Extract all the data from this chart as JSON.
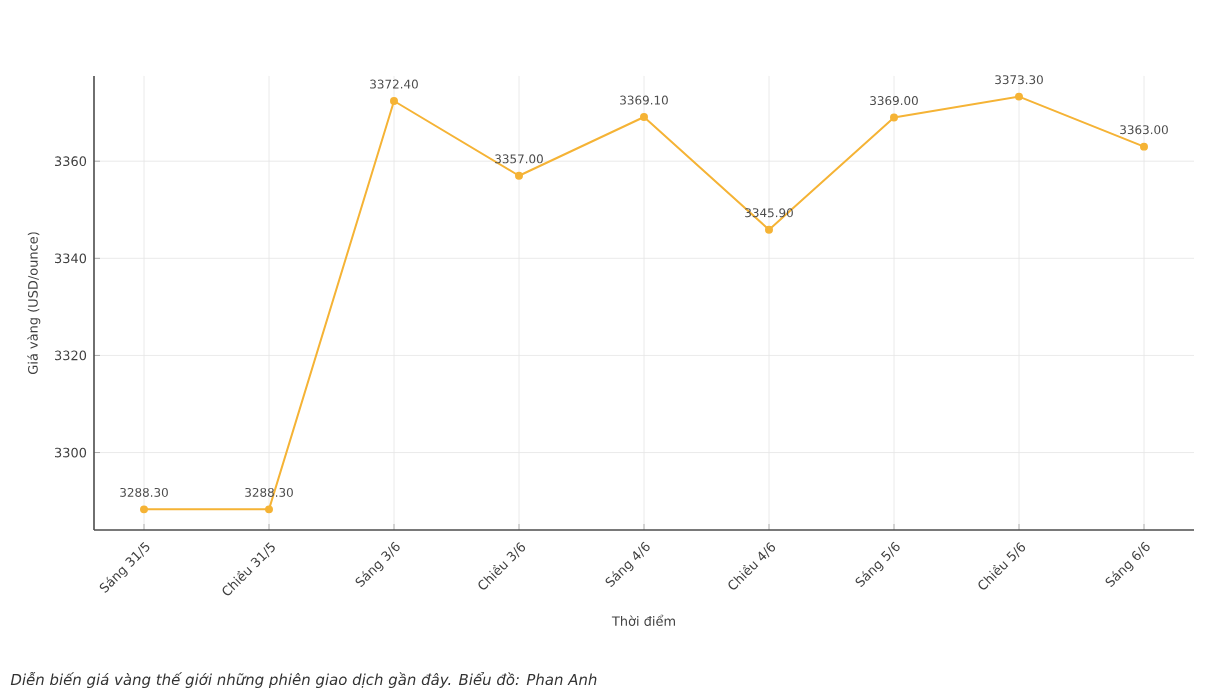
{
  "chart_data": {
    "type": "line",
    "xlabel": "Thời điểm",
    "ylabel": "Giá vàng (USD/ounce)",
    "categories": [
      "Sáng 31/5",
      "Chiều 31/5",
      "Sáng 3/6",
      "Chiều 3/6",
      "Sáng 4/6",
      "Chiều 4/6",
      "Sáng 5/6",
      "Chiều 5/6",
      "Sáng 6/6"
    ],
    "series": [
      {
        "color": "#f5b335",
        "values": [
          3288.3,
          3288.3,
          3372.4,
          3357.0,
          3369.1,
          3345.9,
          3369.0,
          3373.3,
          3363.0
        ],
        "value_labels": [
          "3288.30",
          "3288.30",
          "3372.40",
          "3357.00",
          "3369.10",
          "3345.90",
          "3369.00",
          "3373.30",
          "3363.00"
        ]
      }
    ],
    "ylim": [
      3284.05,
      3377.55
    ],
    "yticks": [
      3300,
      3320,
      3340,
      3360
    ],
    "grid": true,
    "marker": "circle",
    "line_style": "solid",
    "annotations": [
      "Diễn biến giá vàng thế giới những phiên giao dịch gần đây. Biểu đồ: Phan Anh"
    ]
  }
}
